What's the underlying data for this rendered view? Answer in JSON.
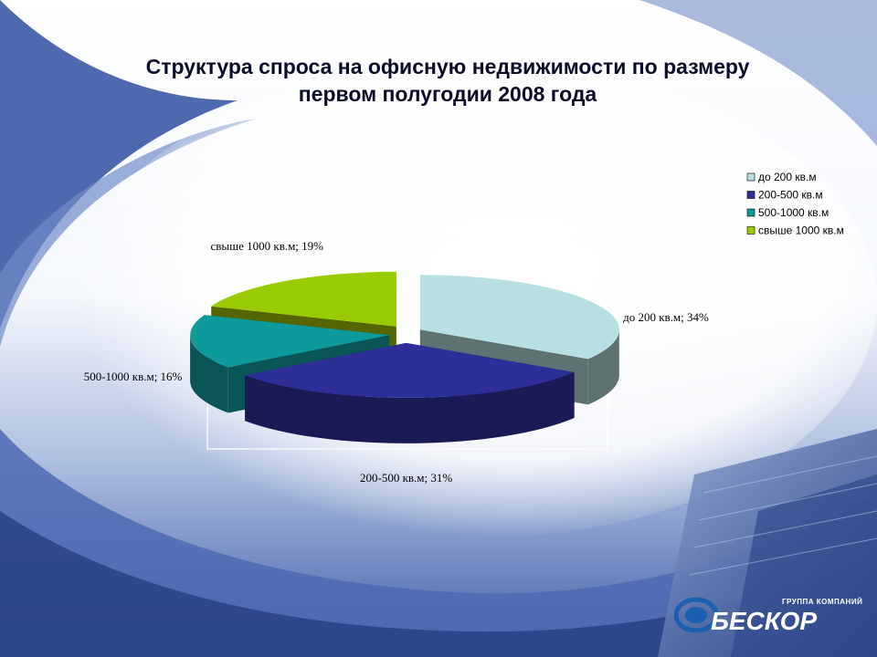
{
  "title_line1": "Структура спроса на офисную недвижимости по размеру",
  "title_line2": "первом полугодии 2008 года",
  "chart_data": {
    "type": "pie",
    "style": "3d-exploded",
    "categories": [
      "до 200 кв.м",
      "200-500 кв.м",
      "500-1000 кв.м",
      "свыше 1000 кв.м"
    ],
    "values": [
      34,
      31,
      16,
      19
    ],
    "data_labels": [
      "до 200 кв.м; 34%",
      "200-500 кв.м; 31%",
      "500-1000 кв.м; 16%",
      "свыше 1000 кв.м; 19%"
    ],
    "colors": {
      "top": [
        "#b7e0e3",
        "#2e2e99",
        "#0e9a9a",
        "#99cc00"
      ],
      "side": [
        "#5e7272",
        "#1a1a55",
        "#0a5555",
        "#556600"
      ]
    },
    "legend_position": "top-right"
  },
  "logo": {
    "small_text": "ГРУППА КОМПАНИЙ",
    "name": "БЕСКОР",
    "colors": {
      "ring": "#1a5fb0",
      "text": "#ffffff"
    }
  }
}
